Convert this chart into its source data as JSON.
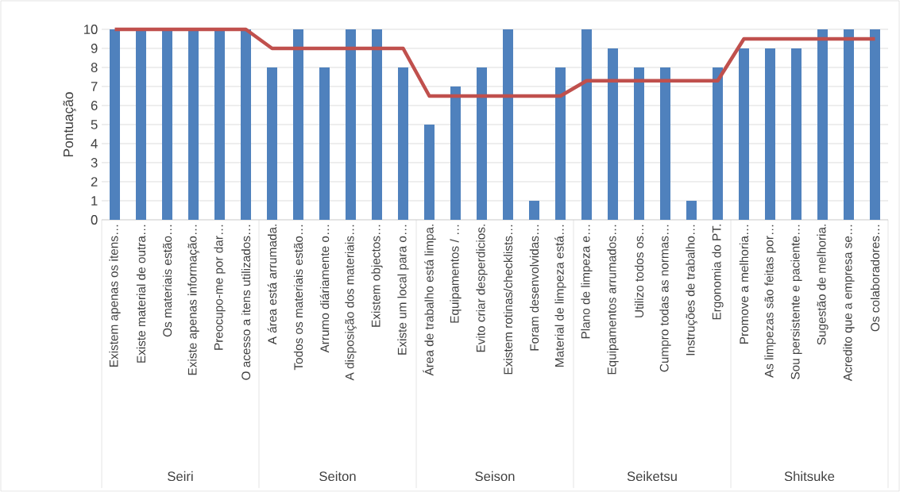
{
  "chart_data": {
    "type": "bar",
    "ylabel": "Pontuação",
    "categories": [
      "Existem apenas os itens…",
      "Existe material de outra…",
      "Os materiais estão…",
      "Existe apenas informação…",
      "Preocupo-me por dar…",
      "O acesso a itens utilizados…",
      "A área está arrumada.",
      "Todos os materiais estão…",
      "Arrumo diáriamente o…",
      "A disposição dos materiais…",
      "Existem objectos…",
      "Existe um local para o…",
      "Área de trabalho está limpa.",
      "Equipamentos / …",
      "Evito criar desperdicios.",
      "Existem rotinas/checklists…",
      "Foram desenvolvidas…",
      "Material de limpeza está…",
      "Plano de limpeza e…",
      "Equipamentos arrumados…",
      "Utilizo todos os…",
      "Cumpro todas as normas…",
      "Instruções de trabalho…",
      "Ergonomia do PT.",
      "Promove a melhoria…",
      "As limpezas são feitas por…",
      "Sou persistente e paciente…",
      "Sugestão de melhoria.",
      "Acredito que a empresa se…",
      "Os colaboradores…"
    ],
    "series": [
      {
        "color": "#4f81bd",
        "values": [
          10,
          10,
          10,
          10,
          10,
          10,
          8,
          10,
          8,
          10,
          10,
          8,
          5,
          7,
          8,
          10,
          1,
          8,
          10,
          9,
          8,
          8,
          1,
          8,
          9,
          9,
          9,
          10,
          10,
          10
        ]
      },
      {
        "type": "line",
        "color": "#c0504d",
        "line_style": "solid",
        "marker": "none",
        "values": [
          10,
          10,
          10,
          10,
          10,
          10,
          9,
          9,
          9,
          9,
          9,
          9,
          6.5,
          6.5,
          6.5,
          6.5,
          6.5,
          6.5,
          7.3,
          7.3,
          7.3,
          7.3,
          7.3,
          7.3,
          9.5,
          9.5,
          9.5,
          9.5,
          9.5,
          9.5
        ]
      }
    ],
    "ylim": [
      0,
      10
    ],
    "yticks": [
      0,
      1,
      2,
      3,
      4,
      5,
      6,
      7,
      8,
      9,
      10
    ],
    "grid": "y",
    "annotations": [
      "Seiri",
      "Seiton",
      "Seison",
      "Seiketsu",
      "Shitsuke"
    ]
  }
}
